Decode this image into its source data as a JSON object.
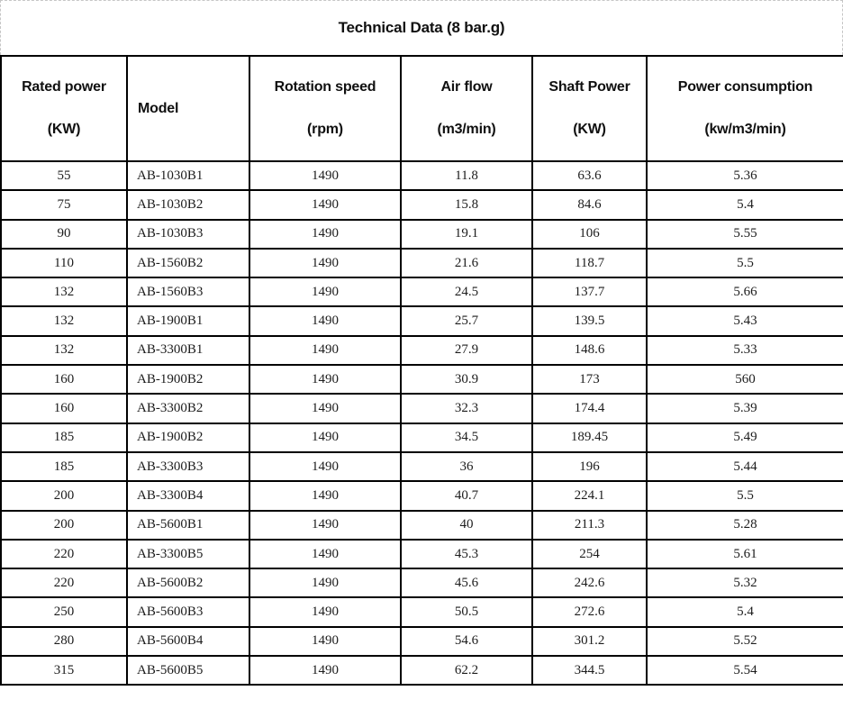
{
  "title": "Technical Data (8 bar.g)",
  "table": {
    "columns": [
      {
        "line1": "Rated power",
        "line2": "(KW)",
        "align": "center"
      },
      {
        "line1": "Model",
        "line2": "",
        "align": "left"
      },
      {
        "line1": "Rotation speed",
        "line2": "(rpm)",
        "align": "center"
      },
      {
        "line1": "Air flow",
        "line2": "(m3/min)",
        "align": "center"
      },
      {
        "line1": "Shaft Power",
        "line2": "(KW)",
        "align": "center"
      },
      {
        "line1": "Power consumption",
        "line2": "(kw/m3/min)",
        "align": "center"
      }
    ],
    "rows": [
      [
        "55",
        "AB-1030B1",
        "1490",
        "11.8",
        "63.6",
        "5.36"
      ],
      [
        "75",
        "AB-1030B2",
        "1490",
        "15.8",
        "84.6",
        "5.4"
      ],
      [
        "90",
        "AB-1030B3",
        "1490",
        "19.1",
        "106",
        "5.55"
      ],
      [
        "110",
        "AB-1560B2",
        "1490",
        "21.6",
        "118.7",
        "5.5"
      ],
      [
        "132",
        "AB-1560B3",
        "1490",
        "24.5",
        "137.7",
        "5.66"
      ],
      [
        "132",
        "AB-1900B1",
        "1490",
        "25.7",
        "139.5",
        "5.43"
      ],
      [
        "132",
        "AB-3300B1",
        "1490",
        "27.9",
        "148.6",
        "5.33"
      ],
      [
        "160",
        "AB-1900B2",
        "1490",
        "30.9",
        "173",
        "560"
      ],
      [
        "160",
        "AB-3300B2",
        "1490",
        "32.3",
        "174.4",
        "5.39"
      ],
      [
        "185",
        "AB-1900B2",
        "1490",
        "34.5",
        "189.45",
        "5.49"
      ],
      [
        "185",
        "AB-3300B3",
        "1490",
        "36",
        "196",
        "5.44"
      ],
      [
        "200",
        "AB-3300B4",
        "1490",
        "40.7",
        "224.1",
        "5.5"
      ],
      [
        "200",
        "AB-5600B1",
        "1490",
        "40",
        "211.3",
        "5.28"
      ],
      [
        "220",
        "AB-3300B5",
        "1490",
        "45.3",
        "254",
        "5.61"
      ],
      [
        "220",
        "AB-5600B2",
        "1490",
        "45.6",
        "242.6",
        "5.32"
      ],
      [
        "250",
        "AB-5600B3",
        "1490",
        "50.5",
        "272.6",
        "5.4"
      ],
      [
        "280",
        "AB-5600B4",
        "1490",
        "54.6",
        "301.2",
        "5.52"
      ],
      [
        "315",
        "AB-5600B5",
        "1490",
        "62.2",
        "344.5",
        "5.54"
      ]
    ]
  },
  "colors": {
    "table_border": "#000000",
    "text": "#1c1c1c",
    "selection_dash": "#c6c6c6",
    "background": "#ffffff"
  }
}
